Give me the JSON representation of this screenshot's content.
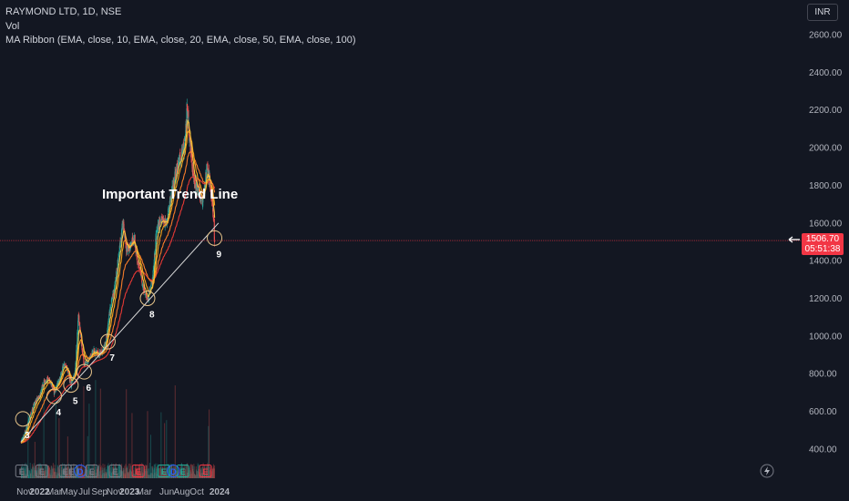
{
  "legend": {
    "symbol": "RAYMOND LTD, 1D, NSE",
    "volume": "Vol",
    "indicator": "MA Ribbon (EMA, close, 10, EMA, close, 20, EMA, close, 50, EMA, close, 100)"
  },
  "currency": "INR",
  "last_price": {
    "value": "1506.70",
    "countdown": "05:51:38"
  },
  "colors": {
    "background": "#131722",
    "up": "#26a69a",
    "down": "#ef5350",
    "ema10": "#f5c343",
    "ema20": "#f7a21b",
    "ema50": "#f57c2a",
    "ema100": "#e53935",
    "trendline": "#d9d9d9",
    "price_line": "#f23645",
    "circle": "#e8c58a",
    "axis_text": "#b2b5be"
  },
  "chart_data": {
    "type": "candlestick",
    "y_axis": {
      "ticks": [
        "2600.00",
        "2400.00",
        "2200.00",
        "2000.00",
        "1800.00",
        "1600.00",
        "1400.00",
        "1200.00",
        "1000.00",
        "800.00",
        "600.00",
        "400.00"
      ],
      "values": [
        2600,
        2400,
        2200,
        2000,
        1800,
        1600,
        1400,
        1200,
        1000,
        800,
        600,
        400
      ],
      "ylim": [
        300,
        2700
      ]
    },
    "x_axis": {
      "ticks": [
        "Nov",
        "2022",
        "Mar",
        "May",
        "Jul",
        "Sep",
        "Nov",
        "2023",
        "Mar",
        "Jun",
        "Aug",
        "Oct",
        "2024"
      ],
      "dates": [
        "2021-11-01",
        "2022-01-01",
        "2022-03-01",
        "2022-05-01",
        "2022-07-01",
        "2022-09-01",
        "2022-11-01",
        "2023-01-01",
        "2023-03-01",
        "2023-06-01",
        "2023-08-01",
        "2023-10-01",
        "2024-01-01"
      ]
    },
    "price_path": [
      [
        "2021-10-18",
        440
      ],
      [
        "2021-11-01",
        480
      ],
      [
        "2021-11-20",
        560
      ],
      [
        "2021-12-10",
        640
      ],
      [
        "2022-01-01",
        680
      ],
      [
        "2022-01-20",
        760
      ],
      [
        "2022-02-10",
        770
      ],
      [
        "2022-03-01",
        700
      ],
      [
        "2022-03-20",
        760
      ],
      [
        "2022-04-10",
        850
      ],
      [
        "2022-04-25",
        820
      ],
      [
        "2022-05-08",
        740
      ],
      [
        "2022-05-25",
        800
      ],
      [
        "2022-06-08",
        1120
      ],
      [
        "2022-06-20",
        950
      ],
      [
        "2022-07-01",
        850
      ],
      [
        "2022-07-20",
        880
      ],
      [
        "2022-08-10",
        920
      ],
      [
        "2022-09-01",
        900
      ],
      [
        "2022-09-25",
        950
      ],
      [
        "2022-10-15",
        1150
      ],
      [
        "2022-11-01",
        1250
      ],
      [
        "2022-11-20",
        1450
      ],
      [
        "2022-12-05",
        1600
      ],
      [
        "2022-12-20",
        1450
      ],
      [
        "2023-01-05",
        1480
      ],
      [
        "2023-01-20",
        1520
      ],
      [
        "2023-02-05",
        1380
      ],
      [
        "2023-02-25",
        1260
      ],
      [
        "2023-03-15",
        1200
      ],
      [
        "2023-04-05",
        1300
      ],
      [
        "2023-04-20",
        1550
      ],
      [
        "2023-05-10",
        1620
      ],
      [
        "2023-05-30",
        1600
      ],
      [
        "2023-06-20",
        1750
      ],
      [
        "2023-07-10",
        1880
      ],
      [
        "2023-07-25",
        1950
      ],
      [
        "2023-08-10",
        2000
      ],
      [
        "2023-08-22",
        2200
      ],
      [
        "2023-09-05",
        2000
      ],
      [
        "2023-09-20",
        1820
      ],
      [
        "2023-10-10",
        1780
      ],
      [
        "2023-10-25",
        1700
      ],
      [
        "2023-11-10",
        1900
      ],
      [
        "2023-11-25",
        1800
      ],
      [
        "2023-12-05",
        1660
      ],
      [
        "2023-12-12",
        1506.7
      ]
    ],
    "trend_line": {
      "start": [
        "2021-10-18",
        440
      ],
      "end": [
        "2023-12-28",
        1600
      ]
    },
    "last_price": 1506.7,
    "circles": [
      {
        "label": "3",
        "date": "2021-10-25",
        "price": 560
      },
      {
        "label": "4",
        "date": "2022-03-01",
        "price": 680
      },
      {
        "label": "5",
        "date": "2022-05-08",
        "price": 740
      },
      {
        "label": "6",
        "date": "2022-07-01",
        "price": 810
      },
      {
        "label": "7",
        "date": "2022-10-05",
        "price": 970
      },
      {
        "label": "8",
        "date": "2023-03-15",
        "price": 1200
      },
      {
        "label": "9",
        "date": "2023-12-12",
        "price": 1520
      }
    ],
    "annotation": "Important Trend Line",
    "event_markers": [
      {
        "type": "E",
        "date": "2021-10-20",
        "color": "gray"
      },
      {
        "type": "E",
        "date": "2022-01-10",
        "color": "gray"
      },
      {
        "type": "E",
        "date": "2022-04-15",
        "color": "gray"
      },
      {
        "type": "E",
        "date": "2022-05-10",
        "color": "gray"
      },
      {
        "type": "D",
        "date": "2022-06-15",
        "color": "blue"
      },
      {
        "type": "E",
        "date": "2022-08-01",
        "color": "gray"
      },
      {
        "type": "E",
        "date": "2022-11-04",
        "color": "gray"
      },
      {
        "type": "E",
        "date": "2023-02-05",
        "color": "red"
      },
      {
        "type": "E",
        "date": "2023-05-20",
        "color": "green"
      },
      {
        "type": "D",
        "date": "2023-06-28",
        "color": "blue"
      },
      {
        "type": "E",
        "date": "2023-08-05",
        "color": "green"
      },
      {
        "type": "E",
        "date": "2023-11-05",
        "color": "red"
      }
    ]
  }
}
